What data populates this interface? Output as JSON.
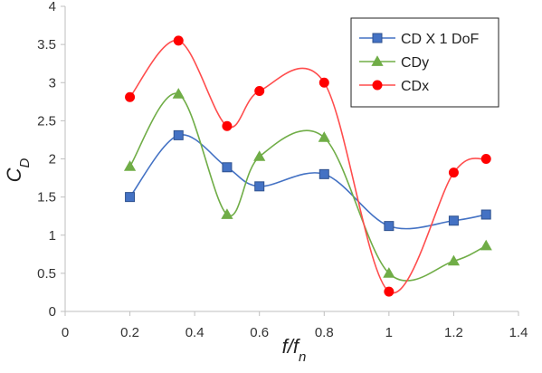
{
  "chart_data": {
    "type": "line",
    "xlabel": "f/fn",
    "ylabel": "CD",
    "xlim": [
      0,
      1.4
    ],
    "ylim": [
      0,
      4
    ],
    "xticks": [
      "0",
      "0.2",
      "0.4",
      "0.6",
      "0.8",
      "1",
      "1.2",
      "1.4"
    ],
    "yticks": [
      "0",
      "0.5",
      "1",
      "1.5",
      "2",
      "2.5",
      "3",
      "3.5",
      "4"
    ],
    "grid": false,
    "legend_position": "top-right",
    "x": [
      0.2,
      0.35,
      0.5,
      0.6,
      0.8,
      1.0,
      1.2,
      1.3
    ],
    "series": [
      {
        "name": "CD X 1 DoF",
        "marker": "square",
        "color": "#4472c4",
        "marker_color": "#4472c4",
        "edge_color": "#2f528f",
        "values": [
          1.5,
          2.31,
          1.89,
          1.64,
          1.8,
          1.12,
          1.19,
          1.27
        ]
      },
      {
        "name": "CDy",
        "marker": "triangle",
        "color": "#70ad47",
        "marker_color": "#70ad47",
        "edge_color": "#70ad47",
        "values": [
          1.9,
          2.85,
          1.27,
          2.03,
          2.28,
          0.5,
          0.66,
          0.86
        ]
      },
      {
        "name": "CDx",
        "marker": "circle",
        "color": "#ff4d4d",
        "marker_color": "#ff0000",
        "edge_color": "#ff0000",
        "values": [
          2.81,
          3.55,
          2.43,
          2.89,
          3.0,
          0.26,
          1.82,
          2.0
        ]
      }
    ]
  }
}
